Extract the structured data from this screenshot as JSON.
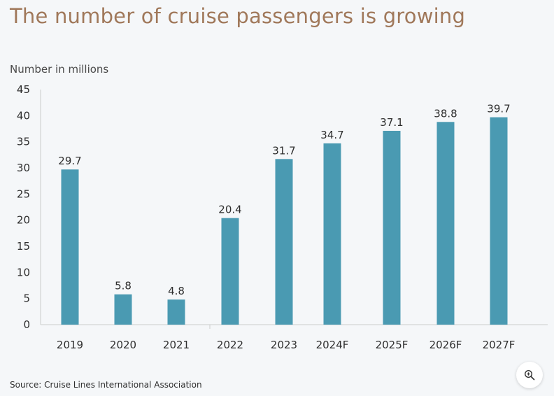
{
  "colors": {
    "bar": "#4a9ab2",
    "title": "#a0785a",
    "axis": "#cccccc",
    "text": "#2e2e2e"
  },
  "zoom": {
    "icon": "zoom-in-icon"
  },
  "chart_data": {
    "type": "bar",
    "title": "The number of cruise passengers is growing",
    "ylabel": "Number in millions",
    "xlabel": "",
    "source": "Source: Cruise Lines International Association",
    "categories": [
      "2019",
      "2020",
      "2021",
      "2022",
      "2023",
      "2024F",
      "2025F",
      "2026F",
      "2027F"
    ],
    "values": [
      29.7,
      5.8,
      4.8,
      20.4,
      31.7,
      34.7,
      37.1,
      38.8,
      39.7
    ],
    "value_labels": [
      "29.7",
      "5.8",
      "4.8",
      "20.4",
      "31.7",
      "34.7",
      "37.1",
      "38.8",
      "39.7"
    ],
    "ylim": [
      0,
      45
    ],
    "yticks": [
      0,
      5,
      10,
      15,
      20,
      25,
      30,
      35,
      40,
      45
    ],
    "grid": false,
    "legend": "none"
  }
}
